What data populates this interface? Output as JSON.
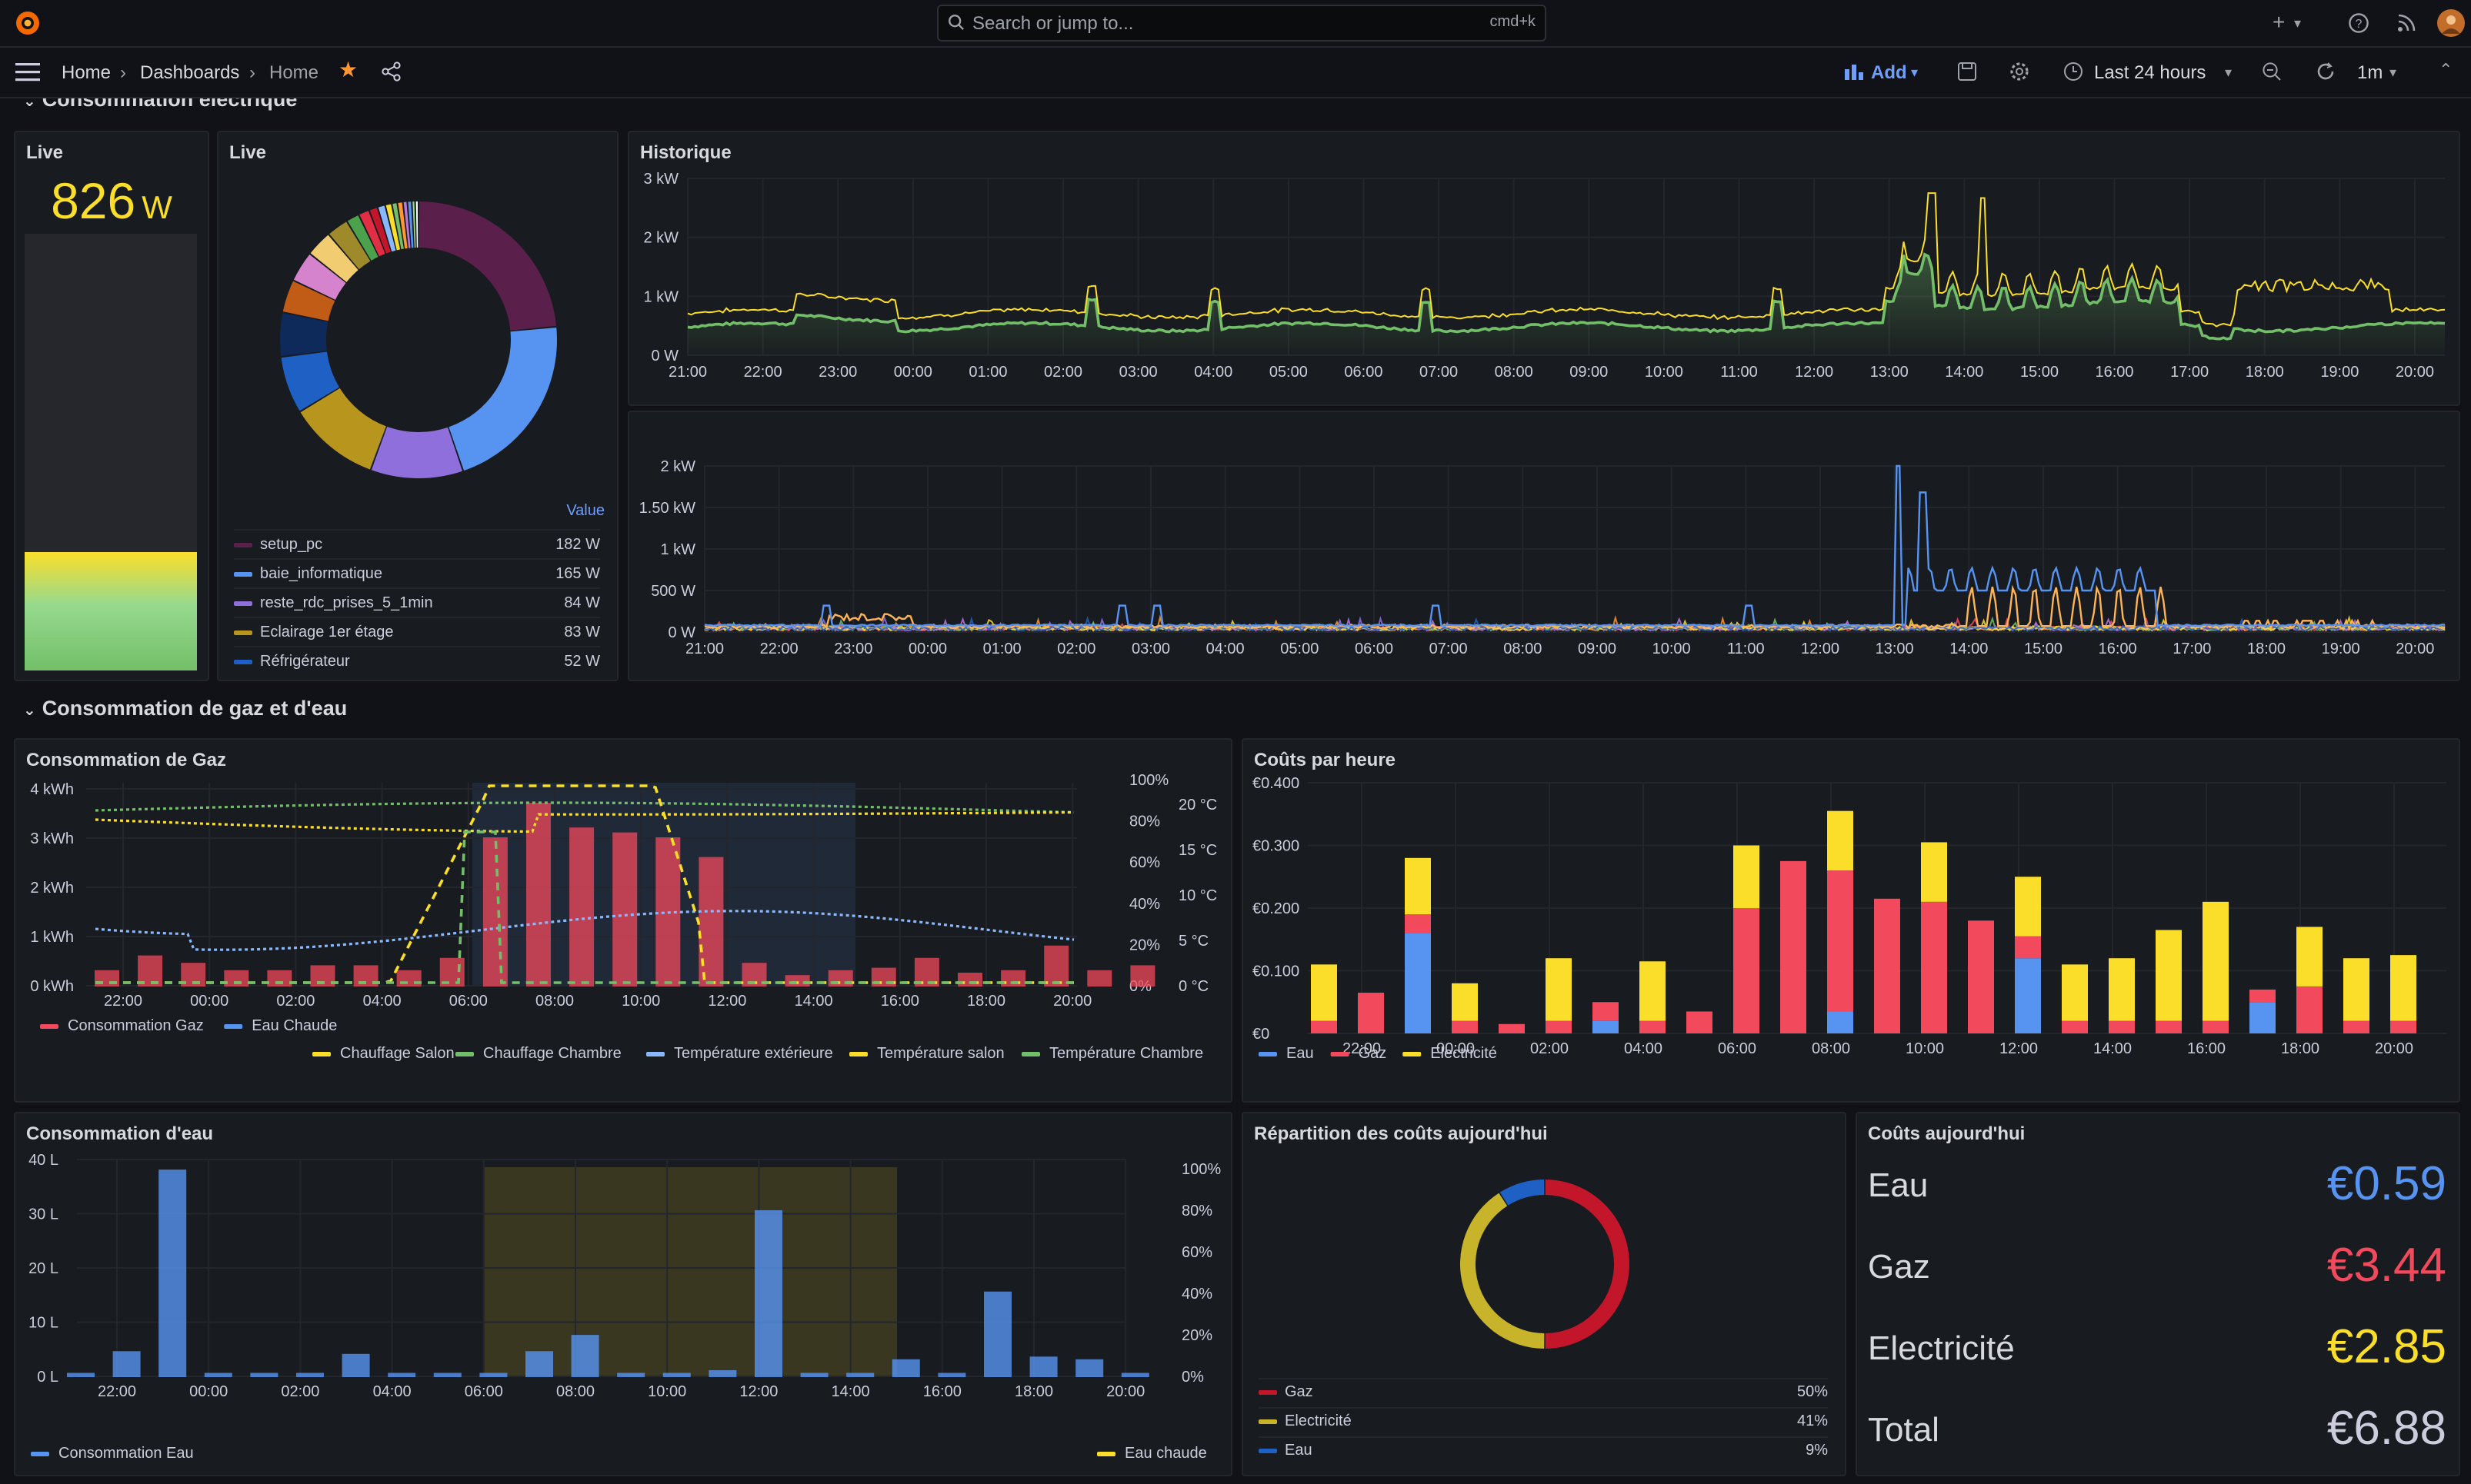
{
  "topbar": {
    "search_placeholder": "Search or jump to...",
    "search_shortcut": "cmd+k",
    "add_icon": "plus-icon"
  },
  "nav": {
    "breadcrumb": [
      "Home",
      "Dashboards",
      "Home"
    ],
    "add_label": "Add",
    "time_range": "Last 24 hours",
    "refresh_interval": "1m"
  },
  "rows": {
    "electricity": "Consommation électrique",
    "gas_water": "Consommation de gaz et d'eau"
  },
  "live_gauge": {
    "title": "Live",
    "value": "826",
    "unit": "W",
    "fill_fraction": 0.27
  },
  "live_donut": {
    "title": "Live",
    "legend_header": "Value",
    "items": [
      {
        "name": "setup_pc",
        "value": "182 W",
        "color": "#5a1f4a"
      },
      {
        "name": "baie_informatique",
        "value": "165 W",
        "color": "#5794f2"
      },
      {
        "name": "reste_rdc_prises_5_1min",
        "value": "84 W",
        "color": "#8f6fdc"
      },
      {
        "name": "Eclairage 1er étage",
        "value": "83 W",
        "color": "#b8961e"
      },
      {
        "name": "Réfrigérateur",
        "value": "52 W",
        "color": "#1f60c4"
      }
    ],
    "other_slices": [
      {
        "value": 40,
        "color": "#0d2a5a"
      },
      {
        "value": 30,
        "color": "#c15c17"
      },
      {
        "value": 28,
        "color": "#d683ce"
      },
      {
        "value": 24,
        "color": "#f2cc70"
      },
      {
        "value": 20,
        "color": "#9e8a2a"
      },
      {
        "value": 12,
        "color": "#4ca24c"
      },
      {
        "value": 10,
        "color": "#e02f44"
      },
      {
        "value": 8,
        "color": "#c4162a"
      },
      {
        "value": 7,
        "color": "#8ab8ff"
      },
      {
        "value": 6,
        "color": "#fade2a"
      },
      {
        "value": 5,
        "color": "#73bf69"
      },
      {
        "value": 5,
        "color": "#ff9830"
      },
      {
        "value": 4,
        "color": "#b877d9"
      },
      {
        "value": 4,
        "color": "#5794f2"
      },
      {
        "value": 3,
        "color": "#96d98d"
      },
      {
        "value": 3,
        "color": "#ffffff"
      }
    ]
  },
  "historique": {
    "title": "Historique",
    "y_ticks": [
      "0 W",
      "1 kW",
      "2 kW",
      "3 kW"
    ],
    "x_ticks": [
      "21:00",
      "22:00",
      "23:00",
      "00:00",
      "01:00",
      "02:00",
      "03:00",
      "04:00",
      "05:00",
      "06:00",
      "07:00",
      "08:00",
      "09:00",
      "10:00",
      "11:00",
      "12:00",
      "13:00",
      "14:00",
      "15:00",
      "16:00",
      "17:00",
      "18:00",
      "19:00",
      "20:00"
    ]
  },
  "detail_chart": {
    "y_ticks": [
      "0 W",
      "500 W",
      "1 kW",
      "1.50 kW",
      "2 kW"
    ],
    "x_ticks": [
      "21:00",
      "22:00",
      "23:00",
      "00:00",
      "01:00",
      "02:00",
      "03:00",
      "04:00",
      "05:00",
      "06:00",
      "07:00",
      "08:00",
      "09:00",
      "10:00",
      "11:00",
      "12:00",
      "13:00",
      "14:00",
      "15:00",
      "16:00",
      "17:00",
      "18:00",
      "19:00",
      "20:00"
    ]
  },
  "gaz": {
    "title": "Consommation de Gaz",
    "y_left": [
      "0 kWh",
      "1 kWh",
      "2 kWh",
      "3 kWh",
      "4 kWh"
    ],
    "y_pct": [
      "0%",
      "20%",
      "40%",
      "60%",
      "80%",
      "100%"
    ],
    "y_temp": [
      "0 °C",
      "5 °C",
      "10 °C",
      "15 °C",
      "20 °C"
    ],
    "x_ticks": [
      "22:00",
      "00:00",
      "02:00",
      "04:00",
      "06:00",
      "08:00",
      "10:00",
      "12:00",
      "14:00",
      "16:00",
      "18:00",
      "20:00"
    ],
    "legend_left": [
      {
        "name": "Consommation Gaz",
        "color": "#f2495c"
      },
      {
        "name": "Eau Chaude",
        "color": "#5794f2"
      }
    ],
    "legend_right": [
      {
        "name": "Chauffage Salon",
        "color": "#fade2a"
      },
      {
        "name": "Chauffage Chambre",
        "color": "#73bf69"
      },
      {
        "name": "Température extérieure",
        "color": "#8ab8ff"
      },
      {
        "name": "Température salon",
        "color": "#fade2a"
      },
      {
        "name": "Température Chambre",
        "color": "#73bf69"
      }
    ],
    "bars_kwh": [
      0.3,
      0.6,
      0.45,
      0.3,
      0.3,
      0.4,
      0.4,
      0.3,
      0.55,
      3.0,
      3.7,
      3.2,
      3.1,
      3.0,
      2.6,
      0.45,
      0.2,
      0.3,
      0.35,
      0.55,
      0.25,
      0.3,
      0.8,
      0.3,
      0.4
    ]
  },
  "couts_heure": {
    "title": "Coûts par heure",
    "y_ticks": [
      "€0",
      "€0.100",
      "€0.200",
      "€0.300",
      "€0.400"
    ],
    "x_ticks": [
      "22:00",
      "00:00",
      "02:00",
      "04:00",
      "06:00",
      "08:00",
      "10:00",
      "12:00",
      "14:00",
      "16:00",
      "18:00",
      "20:00"
    ],
    "legend": [
      {
        "name": "Eau",
        "color": "#5794f2"
      },
      {
        "name": "Gaz",
        "color": "#f2495c"
      },
      {
        "name": "Electricité",
        "color": "#fade2a"
      }
    ],
    "stacks": [
      [
        0,
        0.02,
        0.09
      ],
      [
        0,
        0.065,
        0
      ],
      [
        0.16,
        0.03,
        0.09
      ],
      [
        0,
        0.02,
        0.06
      ],
      [
        0,
        0.015,
        0
      ],
      [
        0,
        0.02,
        0.1
      ],
      [
        0.02,
        0.03,
        0
      ],
      [
        0,
        0.02,
        0.095
      ],
      [
        0,
        0.035,
        0
      ],
      [
        0,
        0.2,
        0.1
      ],
      [
        0,
        0.275,
        0
      ],
      [
        0.035,
        0.225,
        0.095
      ],
      [
        0,
        0.215,
        0
      ],
      [
        0,
        0.21,
        0.095
      ],
      [
        0,
        0.18,
        0
      ],
      [
        0.12,
        0.035,
        0.095
      ],
      [
        0,
        0.02,
        0.09
      ],
      [
        0,
        0.02,
        0.1
      ],
      [
        0,
        0.02,
        0.145
      ],
      [
        0,
        0.02,
        0.19
      ],
      [
        0.05,
        0.02,
        0
      ],
      [
        0,
        0.075,
        0.095
      ],
      [
        0,
        0.02,
        0.1
      ],
      [
        0,
        0.02,
        0.105
      ]
    ]
  },
  "eau": {
    "title": "Consommation d'eau",
    "y_left": [
      "0 L",
      "10 L",
      "20 L",
      "30 L",
      "40 L"
    ],
    "y_pct": [
      "0%",
      "20%",
      "40%",
      "60%",
      "80%",
      "100%"
    ],
    "x_ticks": [
      "22:00",
      "00:00",
      "02:00",
      "04:00",
      "06:00",
      "08:00",
      "10:00",
      "12:00",
      "14:00",
      "16:00",
      "18:00",
      "20:00"
    ],
    "legend_left": {
      "name": "Consommation Eau",
      "color": "#5794f2"
    },
    "legend_right": {
      "name": "Eau chaude",
      "color": "#fade2a"
    },
    "bars_l": [
      0.5,
      4.5,
      38,
      0.5,
      0.5,
      0.5,
      4,
      0.5,
      0.5,
      0.5,
      4.5,
      7.5,
      0.5,
      0.5,
      1,
      30.5,
      0.5,
      0.5,
      3,
      0.5,
      15.5,
      3.5,
      3,
      0.5
    ]
  },
  "repartition": {
    "title": "Répartition des coûts aujourd'hui",
    "items": [
      {
        "name": "Gaz",
        "value": "50%",
        "pct": 50,
        "color": "#c4162a"
      },
      {
        "name": "Electricité",
        "value": "41%",
        "pct": 41,
        "color": "#c8b42a"
      },
      {
        "name": "Eau",
        "value": "9%",
        "pct": 9,
        "color": "#1f60c4"
      }
    ]
  },
  "couts_jour": {
    "title": "Coûts aujourd'hui",
    "items": [
      {
        "name": "Eau",
        "value": "€0.59",
        "color": "#5794f2"
      },
      {
        "name": "Gaz",
        "value": "€3.44",
        "color": "#f2495c"
      },
      {
        "name": "Electricité",
        "value": "€2.85",
        "color": "#fade2a"
      },
      {
        "name": "Total",
        "value": "€6.88",
        "color": "#ccccdc"
      }
    ]
  }
}
